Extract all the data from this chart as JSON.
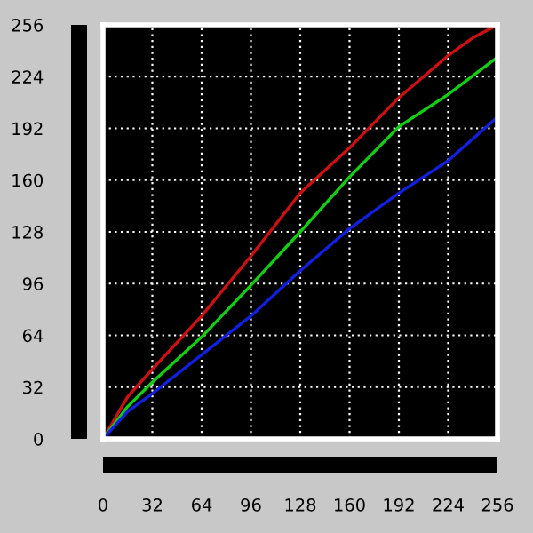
{
  "chart_data": {
    "type": "line",
    "x": [
      0,
      16,
      32,
      64,
      96,
      128,
      160,
      192,
      224,
      240,
      256
    ],
    "series": [
      {
        "color": "#d01010",
        "values": [
          0,
          26,
          43,
          76,
          113,
          152,
          180,
          211,
          237,
          248,
          256
        ]
      },
      {
        "color": "#10d010",
        "x": [
          0,
          16,
          32,
          64,
          96,
          128,
          160,
          192,
          224,
          256
        ],
        "values": [
          0,
          20,
          35,
          63,
          95,
          128,
          162,
          193,
          213,
          236
        ]
      },
      {
        "color": "#1020e0",
        "x": [
          0,
          16,
          32,
          64,
          96,
          128,
          160,
          192,
          224,
          256
        ],
        "values": [
          0,
          17,
          28,
          52,
          76,
          104,
          130,
          152,
          172,
          199
        ]
      }
    ],
    "xlim": [
      0,
      256
    ],
    "ylim": [
      0,
      256
    ],
    "xticks": [
      0,
      32,
      64,
      96,
      128,
      160,
      192,
      224,
      256
    ],
    "yticks": [
      0,
      32,
      64,
      96,
      128,
      160,
      192,
      224,
      256
    ],
    "grid": true,
    "line_style": "solid",
    "marker": "none"
  }
}
